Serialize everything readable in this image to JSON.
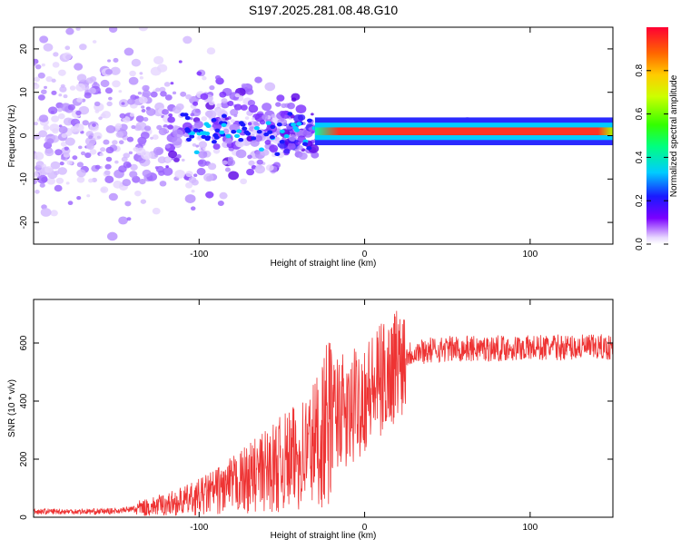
{
  "title": "S197.2025.281.08.48.G10",
  "chart_data": [
    {
      "type": "heatmap",
      "xlabel": "Height of straight line (km)",
      "ylabel": "Frequency (Hz)",
      "xlim": [
        -200,
        150
      ],
      "ylim": [
        -25,
        25
      ],
      "x_ticks": [
        -100,
        0,
        100
      ],
      "y_ticks": [
        -20,
        -10,
        0,
        10,
        20
      ],
      "dominant_frequency_hz": 1,
      "colorbar": {
        "label": "Normalized spectral amplitude",
        "range": [
          0,
          1
        ],
        "ticks": [
          0.0,
          0.2,
          0.4,
          0.6,
          0.8
        ]
      }
    },
    {
      "type": "line",
      "xlabel": "Height of straight line (km)",
      "ylabel": "SNR (10 * v/v)",
      "xlim": [
        -200,
        150
      ],
      "ylim": [
        0,
        750
      ],
      "x_ticks": [
        -100,
        0,
        100
      ],
      "y_ticks": [
        0,
        200,
        400,
        600
      ],
      "series": [
        {
          "name": "SNR",
          "color": "#ee3333",
          "x": [
            -200,
            -180,
            -160,
            -150,
            -140,
            -130,
            -120,
            -110,
            -100,
            -90,
            -80,
            -70,
            -60,
            -50,
            -40,
            -35,
            -30,
            -25,
            -20,
            -15,
            -10,
            -5,
            0,
            5,
            10,
            15,
            20,
            25,
            30,
            40,
            50,
            60,
            80,
            100,
            120,
            150
          ],
          "y": [
            20,
            20,
            20,
            22,
            28,
            35,
            45,
            55,
            70,
            90,
            110,
            135,
            160,
            185,
            210,
            235,
            260,
            300,
            340,
            380,
            330,
            400,
            420,
            440,
            470,
            500,
            540,
            560,
            570,
            575,
            580,
            580,
            582,
            583,
            585,
            585
          ]
        }
      ]
    }
  ]
}
